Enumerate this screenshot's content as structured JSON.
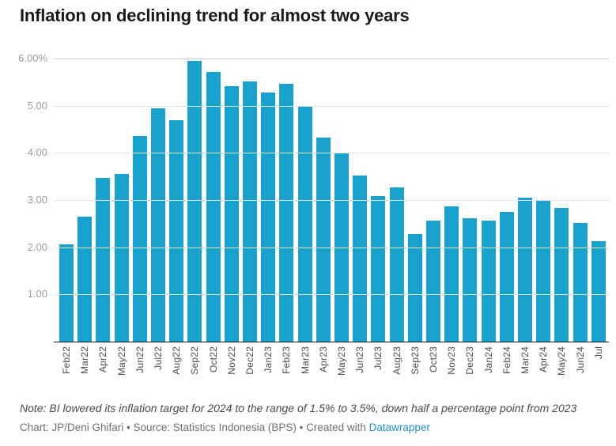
{
  "header": {
    "title": "Inflation on declining trend for almost two years"
  },
  "chart_data": {
    "type": "bar",
    "title": "Inflation on declining trend for almost two years",
    "xlabel": "",
    "ylabel": "",
    "ylim": [
      0,
      6
    ],
    "grid": true,
    "legend": false,
    "bar_color": "#18a1cd",
    "y_ticks": [
      {
        "value": 6,
        "label": "6.00%"
      },
      {
        "value": 5,
        "label": "5.00"
      },
      {
        "value": 4,
        "label": "4.00"
      },
      {
        "value": 3,
        "label": "3.00"
      },
      {
        "value": 2,
        "label": "2.00"
      },
      {
        "value": 1,
        "label": "1.00"
      }
    ],
    "categories": [
      "Feb22",
      "Mar22",
      "Apr22",
      "May22",
      "Jun22",
      "Jul22",
      "Aug22",
      "Sep22",
      "Oct22",
      "Nov22",
      "Dec22",
      "Jan23",
      "Feb23",
      "Mar23",
      "Apr23",
      "May23",
      "Jun23",
      "Jul23",
      "Aug23",
      "Sep23",
      "Oct23",
      "Nov23",
      "Dec23",
      "Jan24",
      "Feb24",
      "Mar24",
      "Apr24",
      "May24",
      "Jun24",
      "Jul"
    ],
    "values": [
      2.06,
      2.64,
      3.47,
      3.55,
      4.35,
      4.94,
      4.69,
      5.95,
      5.71,
      5.42,
      5.51,
      5.28,
      5.47,
      4.97,
      4.33,
      4.0,
      3.52,
      3.08,
      3.27,
      2.28,
      2.56,
      2.86,
      2.61,
      2.57,
      2.75,
      3.05,
      3.0,
      2.84,
      2.51,
      2.13
    ]
  },
  "footer": {
    "note": "Note: BI lowered its inflation target for 2024 to the range of 1.5% to 3.5%, down half a percentage point from 2023",
    "attribution_prefix": "Chart: JP/Deni Ghifari • Source: Statistics Indonesia (BPS) • Created with ",
    "attribution_link": "Datawrapper"
  }
}
